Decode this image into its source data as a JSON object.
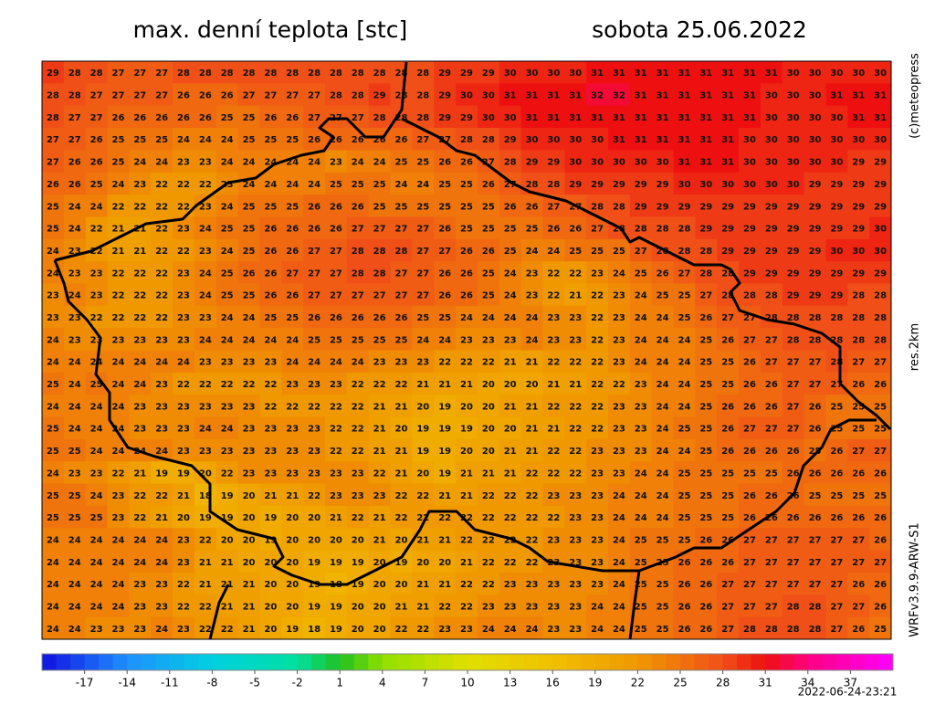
{
  "chart_data": {
    "type": "heatmap",
    "title": "max. denní teplota [stc]",
    "subtitle": "sobota 25.06.2022",
    "annotations": [
      "(c)meteopress",
      "res.2km",
      "WRFv3.9.9-ARW-S1",
      "2022-06-24-23:21"
    ],
    "values": [
      [
        29,
        28,
        28,
        27,
        27,
        27,
        28,
        28,
        28,
        28,
        28,
        28,
        28,
        28,
        28,
        28,
        28,
        28,
        29,
        29,
        29,
        30,
        30,
        30,
        30,
        31,
        31,
        31,
        31,
        31,
        31,
        31,
        31,
        31,
        30,
        30,
        30,
        30,
        30
      ],
      [
        28,
        28,
        27,
        27,
        27,
        27,
        26,
        26,
        26,
        27,
        27,
        27,
        27,
        28,
        28,
        29,
        28,
        28,
        29,
        30,
        30,
        31,
        31,
        31,
        31,
        32,
        32,
        31,
        31,
        31,
        31,
        31,
        31,
        30,
        30,
        30,
        31,
        31,
        31
      ],
      [
        28,
        27,
        27,
        26,
        26,
        26,
        26,
        26,
        25,
        25,
        26,
        26,
        27,
        27,
        27,
        28,
        28,
        28,
        29,
        29,
        30,
        30,
        31,
        31,
        31,
        31,
        31,
        31,
        31,
        31,
        31,
        31,
        31,
        30,
        30,
        30,
        30,
        31,
        31
      ],
      [
        27,
        27,
        26,
        25,
        25,
        25,
        24,
        24,
        24,
        25,
        25,
        25,
        26,
        26,
        26,
        26,
        26,
        27,
        27,
        28,
        28,
        29,
        30,
        30,
        30,
        30,
        31,
        31,
        31,
        31,
        31,
        31,
        30,
        30,
        30,
        30,
        30,
        30,
        30
      ],
      [
        27,
        26,
        26,
        25,
        24,
        24,
        23,
        23,
        24,
        24,
        24,
        24,
        24,
        23,
        24,
        24,
        25,
        25,
        26,
        26,
        27,
        28,
        29,
        29,
        30,
        30,
        30,
        30,
        30,
        31,
        31,
        31,
        30,
        30,
        30,
        30,
        30,
        29,
        29
      ],
      [
        26,
        26,
        25,
        24,
        23,
        22,
        22,
        22,
        23,
        24,
        24,
        24,
        24,
        25,
        25,
        25,
        24,
        24,
        25,
        25,
        26,
        27,
        28,
        28,
        29,
        29,
        29,
        29,
        29,
        30,
        30,
        30,
        30,
        30,
        30,
        29,
        29,
        29,
        29
      ],
      [
        25,
        24,
        24,
        22,
        22,
        22,
        22,
        23,
        24,
        25,
        25,
        25,
        26,
        26,
        26,
        25,
        25,
        25,
        25,
        25,
        25,
        26,
        26,
        27,
        27,
        28,
        28,
        29,
        29,
        29,
        29,
        29,
        29,
        29,
        29,
        29,
        29,
        29,
        29
      ],
      [
        25,
        24,
        22,
        21,
        21,
        22,
        23,
        24,
        25,
        25,
        26,
        26,
        26,
        26,
        27,
        27,
        27,
        27,
        26,
        25,
        25,
        25,
        25,
        26,
        26,
        27,
        28,
        28,
        28,
        28,
        29,
        29,
        29,
        29,
        29,
        29,
        29,
        29,
        30
      ],
      [
        24,
        23,
        22,
        21,
        21,
        22,
        22,
        23,
        24,
        25,
        26,
        26,
        27,
        27,
        28,
        28,
        28,
        27,
        27,
        26,
        26,
        25,
        24,
        24,
        25,
        25,
        25,
        27,
        28,
        28,
        28,
        29,
        29,
        29,
        29,
        29,
        30,
        30,
        30
      ],
      [
        24,
        23,
        23,
        22,
        22,
        22,
        23,
        24,
        25,
        26,
        26,
        27,
        27,
        27,
        28,
        28,
        27,
        27,
        26,
        26,
        25,
        24,
        23,
        22,
        22,
        23,
        24,
        25,
        26,
        27,
        28,
        28,
        29,
        29,
        29,
        29,
        29,
        29,
        29
      ],
      [
        23,
        24,
        23,
        22,
        22,
        22,
        23,
        24,
        25,
        25,
        26,
        26,
        27,
        27,
        27,
        27,
        27,
        27,
        26,
        26,
        25,
        24,
        23,
        22,
        21,
        22,
        23,
        24,
        25,
        25,
        27,
        28,
        28,
        28,
        29,
        29,
        29,
        28,
        28
      ],
      [
        23,
        23,
        22,
        22,
        22,
        22,
        23,
        23,
        24,
        24,
        25,
        25,
        26,
        26,
        26,
        26,
        26,
        25,
        25,
        24,
        24,
        24,
        24,
        23,
        23,
        22,
        23,
        24,
        24,
        25,
        26,
        27,
        27,
        28,
        28,
        28,
        28,
        28,
        28
      ],
      [
        24,
        23,
        23,
        23,
        23,
        23,
        23,
        24,
        24,
        24,
        24,
        24,
        25,
        25,
        25,
        25,
        25,
        24,
        24,
        23,
        23,
        23,
        24,
        23,
        23,
        22,
        23,
        24,
        24,
        24,
        25,
        26,
        27,
        27,
        28,
        28,
        28,
        28,
        28
      ],
      [
        24,
        24,
        24,
        24,
        24,
        24,
        24,
        23,
        23,
        23,
        23,
        24,
        24,
        24,
        24,
        23,
        23,
        23,
        22,
        22,
        22,
        21,
        21,
        22,
        22,
        22,
        23,
        24,
        24,
        24,
        25,
        25,
        26,
        27,
        27,
        27,
        28,
        27,
        27
      ],
      [
        25,
        24,
        25,
        24,
        24,
        23,
        22,
        22,
        22,
        22,
        22,
        23,
        23,
        23,
        22,
        22,
        22,
        21,
        21,
        21,
        20,
        20,
        20,
        21,
        21,
        22,
        22,
        23,
        24,
        24,
        25,
        25,
        26,
        26,
        27,
        27,
        27,
        26,
        26
      ],
      [
        24,
        24,
        24,
        24,
        23,
        23,
        23,
        23,
        23,
        23,
        22,
        22,
        22,
        22,
        22,
        21,
        21,
        20,
        19,
        20,
        20,
        21,
        21,
        22,
        22,
        22,
        23,
        23,
        24,
        24,
        25,
        26,
        26,
        26,
        27,
        26,
        25,
        25,
        25
      ],
      [
        25,
        24,
        24,
        24,
        23,
        23,
        23,
        24,
        24,
        23,
        23,
        23,
        23,
        22,
        22,
        21,
        20,
        19,
        19,
        19,
        20,
        20,
        21,
        21,
        22,
        22,
        23,
        23,
        24,
        25,
        25,
        26,
        27,
        27,
        27,
        26,
        25,
        25,
        25
      ],
      [
        25,
        25,
        24,
        24,
        24,
        24,
        23,
        23,
        23,
        23,
        23,
        23,
        23,
        22,
        22,
        21,
        21,
        19,
        19,
        20,
        20,
        21,
        21,
        22,
        22,
        23,
        23,
        23,
        24,
        24,
        25,
        26,
        26,
        26,
        26,
        25,
        26,
        27,
        27
      ],
      [
        24,
        23,
        23,
        22,
        21,
        19,
        19,
        20,
        22,
        23,
        23,
        23,
        23,
        23,
        23,
        22,
        21,
        20,
        19,
        21,
        21,
        21,
        22,
        22,
        22,
        23,
        23,
        24,
        24,
        25,
        25,
        25,
        25,
        25,
        26,
        26,
        26,
        26,
        26
      ],
      [
        25,
        25,
        24,
        23,
        22,
        22,
        21,
        18,
        19,
        20,
        21,
        21,
        22,
        23,
        23,
        23,
        22,
        22,
        21,
        21,
        22,
        22,
        22,
        23,
        23,
        23,
        24,
        24,
        24,
        25,
        25,
        25,
        26,
        26,
        26,
        25,
        25,
        25,
        25
      ],
      [
        25,
        25,
        25,
        23,
        22,
        21,
        20,
        19,
        19,
        20,
        19,
        20,
        20,
        21,
        22,
        21,
        22,
        22,
        22,
        22,
        22,
        22,
        22,
        22,
        23,
        23,
        24,
        24,
        24,
        25,
        25,
        25,
        26,
        26,
        26,
        26,
        26,
        26,
        26
      ],
      [
        24,
        24,
        24,
        24,
        24,
        24,
        23,
        22,
        20,
        20,
        19,
        20,
        20,
        20,
        20,
        21,
        20,
        21,
        21,
        22,
        22,
        22,
        22,
        23,
        23,
        23,
        24,
        25,
        25,
        25,
        26,
        26,
        27,
        27,
        27,
        27,
        27,
        27,
        26
      ],
      [
        24,
        24,
        24,
        24,
        24,
        24,
        23,
        21,
        21,
        20,
        20,
        20,
        19,
        19,
        19,
        20,
        19,
        20,
        20,
        21,
        22,
        22,
        22,
        23,
        23,
        23,
        24,
        25,
        25,
        26,
        26,
        26,
        27,
        27,
        27,
        27,
        27,
        27,
        27
      ],
      [
        24,
        24,
        24,
        24,
        23,
        23,
        22,
        21,
        21,
        21,
        20,
        20,
        19,
        18,
        19,
        20,
        20,
        21,
        21,
        22,
        22,
        23,
        23,
        23,
        23,
        23,
        24,
        25,
        25,
        26,
        26,
        27,
        27,
        27,
        27,
        27,
        27,
        26,
        26
      ],
      [
        24,
        24,
        24,
        24,
        23,
        23,
        22,
        22,
        21,
        21,
        20,
        20,
        19,
        19,
        20,
        20,
        21,
        21,
        22,
        22,
        23,
        23,
        23,
        23,
        23,
        24,
        24,
        25,
        25,
        26,
        26,
        27,
        27,
        27,
        28,
        28,
        27,
        27,
        26
      ],
      [
        24,
        24,
        23,
        23,
        23,
        24,
        23,
        22,
        22,
        21,
        20,
        19,
        18,
        19,
        20,
        20,
        22,
        22,
        23,
        23,
        24,
        24,
        24,
        23,
        23,
        24,
        24,
        25,
        25,
        26,
        26,
        27,
        28,
        28,
        28,
        28,
        27,
        26,
        25
      ]
    ],
    "colorbar": {
      "range": [
        -20,
        40
      ],
      "ticks": [
        -17,
        -14,
        -11,
        -8,
        -5,
        -2,
        1,
        4,
        7,
        10,
        13,
        16,
        19,
        22,
        25,
        28,
        31,
        34,
        37
      ],
      "stops": [
        {
          "value": -20,
          "color": "#1010e0"
        },
        {
          "value": -14,
          "color": "#1e90ff"
        },
        {
          "value": -8,
          "color": "#00d0e0"
        },
        {
          "value": -2,
          "color": "#00e0a0"
        },
        {
          "value": 1,
          "color": "#20c020"
        },
        {
          "value": 4,
          "color": "#90e000"
        },
        {
          "value": 10,
          "color": "#e0e000"
        },
        {
          "value": 16,
          "color": "#f0c000"
        },
        {
          "value": 22,
          "color": "#f09800"
        },
        {
          "value": 28,
          "color": "#f05018"
        },
        {
          "value": 31,
          "color": "#ee1010"
        },
        {
          "value": 34,
          "color": "#ff0080"
        },
        {
          "value": 40,
          "color": "#ff00ff"
        }
      ]
    }
  }
}
